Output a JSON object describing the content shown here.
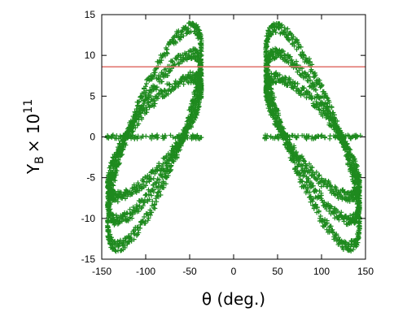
{
  "chart_data": {
    "type": "scatter",
    "xlabel": "θ (deg.)",
    "ylabel": {
      "text": "Y",
      "subscript": "B",
      "multiplier": "× 10",
      "exponent": "11"
    },
    "xlim": [
      -150,
      150
    ],
    "ylim": [
      -15,
      15
    ],
    "x_ticks": [
      -150,
      -100,
      -50,
      0,
      50,
      100,
      150
    ],
    "y_ticks": [
      -15,
      -10,
      -5,
      0,
      5,
      10,
      15
    ],
    "grid": false,
    "legend": "none",
    "marker": "+",
    "colors": {
      "points": "#1e8a1e",
      "reference_line": "#e0706a"
    },
    "reference_line": {
      "y": 8.6
    },
    "series": [
      {
        "branch": "left",
        "x_range": [
          -143,
          -33
        ],
        "approx_points": [
          [
            -143,
            -0.5
          ],
          [
            -140,
            -3
          ],
          [
            -135,
            -6.5
          ],
          [
            -125,
            -9.5
          ],
          [
            -115,
            -13.8
          ],
          [
            -105,
            -10
          ],
          [
            -100,
            -5
          ],
          [
            -93,
            0
          ],
          [
            -85,
            5
          ],
          [
            -75,
            10
          ],
          [
            -68,
            13.8
          ],
          [
            -60,
            11
          ],
          [
            -50,
            7
          ],
          [
            -40,
            2.5
          ],
          [
            -33,
            0.5
          ]
        ]
      },
      {
        "branch": "right",
        "x_range": [
          33,
          143
        ],
        "approx_points": [
          [
            33,
            -0.5
          ],
          [
            40,
            -3
          ],
          [
            45,
            -6.5
          ],
          [
            55,
            -9.5
          ],
          [
            65,
            -13.8
          ],
          [
            75,
            -10
          ],
          [
            80,
            -5
          ],
          [
            87,
            0
          ],
          [
            95,
            5
          ],
          [
            105,
            10
          ],
          [
            112,
            13.8
          ],
          [
            120,
            11
          ],
          [
            130,
            7
          ],
          [
            138,
            2.5
          ],
          [
            143,
            0.5
          ]
        ]
      }
    ]
  }
}
